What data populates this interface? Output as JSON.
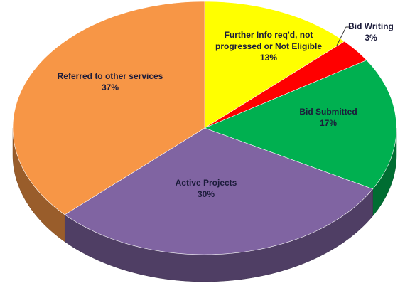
{
  "chart_data": {
    "type": "pie",
    "categories": [
      "Further Info req'd, not progressed or Not Eligible",
      "Bid Writing",
      "Bid Submitted",
      "Active Projects",
      "Referred to other services"
    ],
    "values": [
      13,
      3,
      17,
      30,
      37
    ],
    "value_labels": [
      "13%",
      "3%",
      "17%",
      "30%",
      "37%"
    ],
    "colors": [
      "#ffff00",
      "#ff0000",
      "#00b050",
      "#8064a2",
      "#f79646"
    ]
  }
}
